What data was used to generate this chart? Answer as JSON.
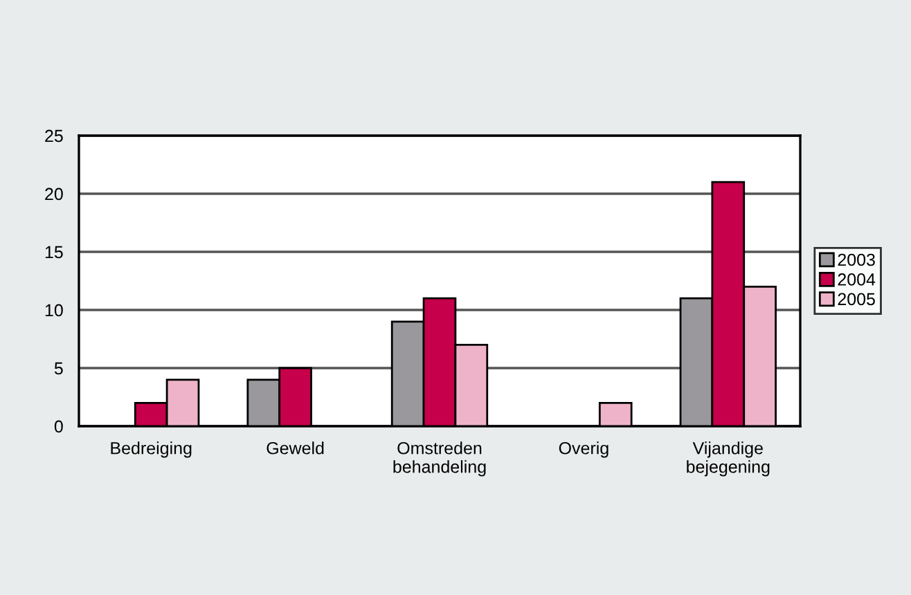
{
  "chart_data": {
    "type": "bar",
    "categories": [
      "Bedreiging",
      "Geweld",
      "Omstreden\nbehandeling",
      "Overig",
      "Vijandige\nbejegening"
    ],
    "series": [
      {
        "name": "2003",
        "color": "#9a989d",
        "values": [
          null,
          4,
          9,
          null,
          11
        ]
      },
      {
        "name": "2004",
        "color": "#c6004a",
        "values": [
          2,
          5,
          11,
          null,
          21
        ]
      },
      {
        "name": "2005",
        "color": "#efb3c9",
        "values": [
          4,
          null,
          7,
          2,
          12
        ]
      }
    ],
    "ylim": [
      0,
      25
    ],
    "yticks": [
      0,
      5,
      10,
      15,
      20,
      25
    ],
    "grid": "y",
    "legend": "right"
  }
}
